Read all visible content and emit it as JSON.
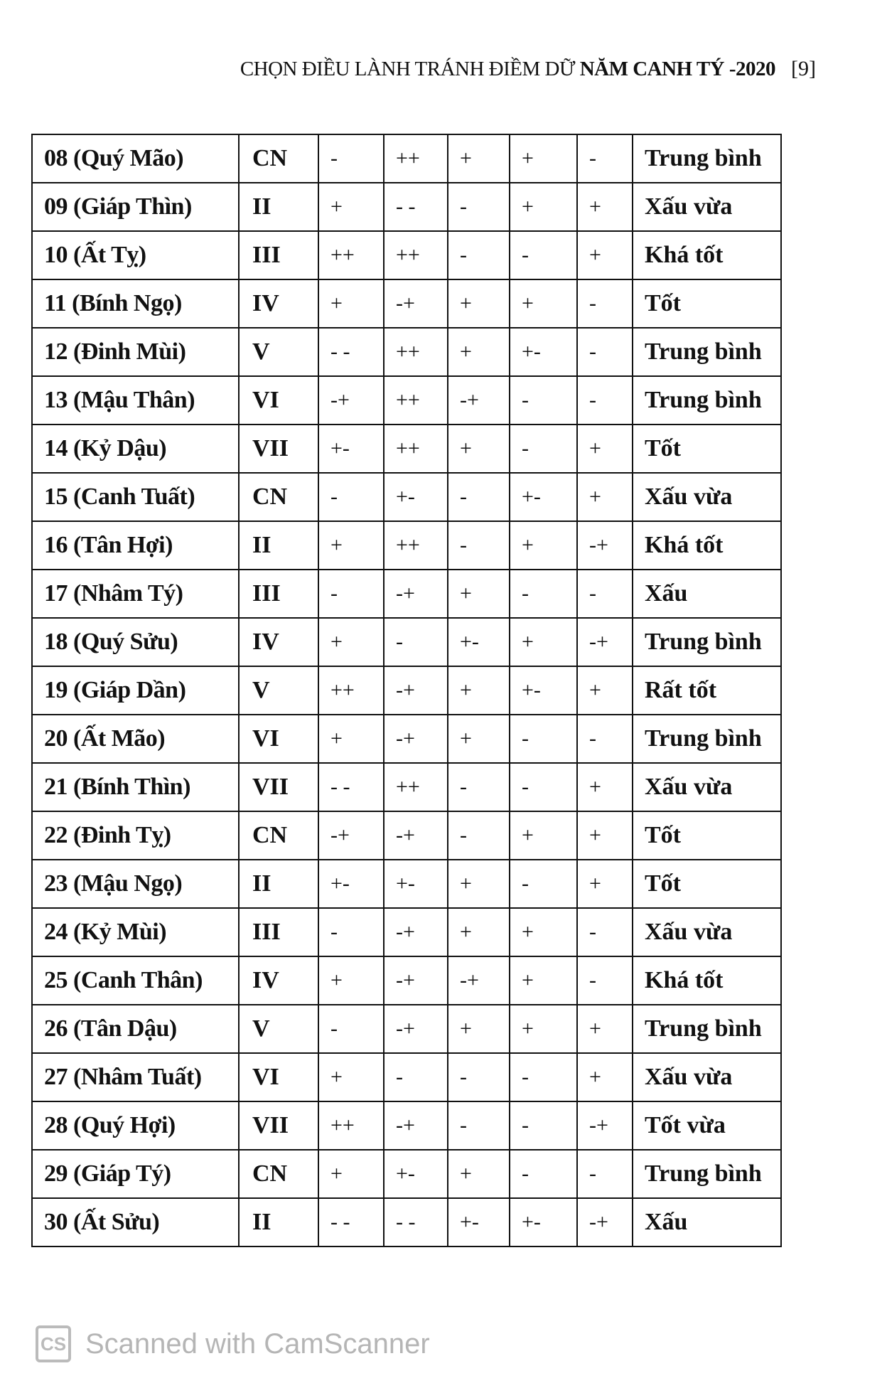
{
  "header": {
    "title_normal": "CHỌN ĐIỀU LÀNH TRÁNH ĐIỀM DỮ ",
    "title_bold": "NĂM CANH TÝ -2020",
    "page_number": "[9]"
  },
  "table": {
    "rows": [
      {
        "name": "08 (Quý Mão)",
        "day": "CN",
        "c1": "-",
        "c2": "++",
        "c3": "+",
        "c4": "+",
        "c5": "-",
        "rating": "Trung bình"
      },
      {
        "name": "09 (Giáp Thìn)",
        "day": "II",
        "c1": "+",
        "c2": "- -",
        "c3": "-",
        "c4": "+",
        "c5": "+",
        "rating": "Xấu vừa"
      },
      {
        "name": "10 (Ất Tỵ)",
        "day": "III",
        "c1": "++",
        "c2": "++",
        "c3": "-",
        "c4": "-",
        "c5": "+",
        "rating": "Khá tốt"
      },
      {
        "name": "11 (Bính Ngọ)",
        "day": "IV",
        "c1": "+",
        "c2": "-+",
        "c3": "+",
        "c4": "+",
        "c5": "-",
        "rating": "Tốt"
      },
      {
        "name": "12 (Đinh Mùi)",
        "day": "V",
        "c1": "- -",
        "c2": "++",
        "c3": "+",
        "c4": "+-",
        "c5": "-",
        "rating": "Trung bình"
      },
      {
        "name": "13 (Mậu Thân)",
        "day": "VI",
        "c1": "-+",
        "c2": "++",
        "c3": "-+",
        "c4": "-",
        "c5": "-",
        "rating": "Trung bình"
      },
      {
        "name": "14 (Kỷ Dậu)",
        "day": "VII",
        "c1": "+-",
        "c2": "++",
        "c3": "+",
        "c4": "-",
        "c5": "+",
        "rating": "Tốt"
      },
      {
        "name": "15 (Canh Tuất)",
        "day": "CN",
        "c1": "-",
        "c2": "+-",
        "c3": "-",
        "c4": "+-",
        "c5": "+",
        "rating": "Xấu vừa"
      },
      {
        "name": "16 (Tân Hợi)",
        "day": "II",
        "c1": "+",
        "c2": "++",
        "c3": "-",
        "c4": "+",
        "c5": "-+",
        "rating": "Khá tốt"
      },
      {
        "name": "17 (Nhâm Tý)",
        "day": "III",
        "c1": "-",
        "c2": "-+",
        "c3": "+",
        "c4": "-",
        "c5": "-",
        "rating": "Xấu"
      },
      {
        "name": "18 (Quý Sửu)",
        "day": "IV",
        "c1": "+",
        "c2": "-",
        "c3": "+-",
        "c4": "+",
        "c5": "-+",
        "rating": "Trung bình"
      },
      {
        "name": "19 (Giáp Dần)",
        "day": "V",
        "c1": "++",
        "c2": "-+",
        "c3": "+",
        "c4": "+-",
        "c5": "+",
        "rating": "Rất tốt"
      },
      {
        "name": "20 (Ất Mão)",
        "day": "VI",
        "c1": "+",
        "c2": "-+",
        "c3": "+",
        "c4": "-",
        "c5": "-",
        "rating": "Trung bình"
      },
      {
        "name": "21 (Bính Thìn)",
        "day": "VII",
        "c1": "- -",
        "c2": "++",
        "c3": "-",
        "c4": "-",
        "c5": "+",
        "rating": "Xấu vừa"
      },
      {
        "name": "22 (Đinh Tỵ)",
        "day": "CN",
        "c1": "-+",
        "c2": "-+",
        "c3": "-",
        "c4": "+",
        "c5": "+",
        "rating": "Tốt"
      },
      {
        "name": "23 (Mậu Ngọ)",
        "day": "II",
        "c1": "+-",
        "c2": "+-",
        "c3": "+",
        "c4": "-",
        "c5": "+",
        "rating": "Tốt"
      },
      {
        "name": "24 (Kỷ Mùi)",
        "day": "III",
        "c1": "-",
        "c2": "-+",
        "c3": "+",
        "c4": "+",
        "c5": "-",
        "rating": "Xấu vừa"
      },
      {
        "name": "25 (Canh Thân)",
        "day": "IV",
        "c1": "+",
        "c2": "-+",
        "c3": "-+",
        "c4": "+",
        "c5": "-",
        "rating": "Khá tốt"
      },
      {
        "name": "26 (Tân Dậu)",
        "day": "V",
        "c1": "-",
        "c2": "-+",
        "c3": "+",
        "c4": "+",
        "c5": "+",
        "rating": "Trung bình"
      },
      {
        "name": "27 (Nhâm Tuất)",
        "day": "VI",
        "c1": "+",
        "c2": "-",
        "c3": "-",
        "c4": "-",
        "c5": "+",
        "rating": "Xấu vừa"
      },
      {
        "name": "28 (Quý Hợi)",
        "day": "VII",
        "c1": "++",
        "c2": "-+",
        "c3": "-",
        "c4": "-",
        "c5": "-+",
        "rating": "Tốt vừa"
      },
      {
        "name": "29 (Giáp Tý)",
        "day": "CN",
        "c1": "+",
        "c2": "+-",
        "c3": "+",
        "c4": "-",
        "c5": "-",
        "rating": "Trung bình"
      },
      {
        "name": "30 (Ất Sửu)",
        "day": "II",
        "c1": "- -",
        "c2": "- -",
        "c3": "+-",
        "c4": "+-",
        "c5": "-+",
        "rating": "Xấu"
      }
    ]
  },
  "watermark": {
    "logo": "CS",
    "text": "Scanned with CamScanner"
  }
}
